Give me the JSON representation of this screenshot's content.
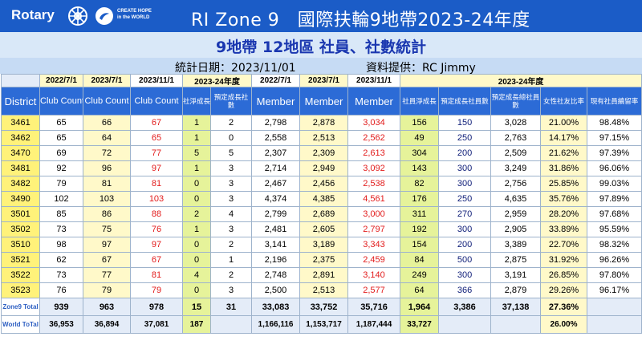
{
  "header": {
    "logo_text": "Rotary",
    "hope_text": [
      "CREATE HOPE",
      "in the WORLD"
    ],
    "title": "RI Zone 9　國際扶輪9地帶2023-24年度",
    "colors": {
      "header_bg": "#1b5cc7",
      "header_row_bg": "#2c6bd6",
      "district_bg": "#fff27a",
      "accent_red": "#e21b1b"
    }
  },
  "subtitle": "9地帶 12地區 社員、社數統計",
  "info": {
    "stat_date": "統計日期：2023/11/01",
    "provider": "資料提供：RC Jimmy"
  },
  "table": {
    "header_row1": [
      "2022/7/1",
      "2023/7/1",
      "2023/11/1",
      "2023-24年度",
      "2022/7/1",
      "2023/7/1",
      "2023/11/1",
      "2023-24年度"
    ],
    "header_row2": [
      "District",
      "Club Count",
      "Club Count",
      "Club Count",
      "社淨成長",
      "預定成長社數",
      "Member",
      "Member",
      "Member",
      "社員淨成長",
      "預定成長社員數",
      "預定成長總社員數",
      "女性社友比率",
      "現有社員續留率"
    ],
    "rows": [
      [
        "3461",
        "65",
        "66",
        "67",
        "1",
        "2",
        "2,798",
        "2,878",
        "3,034",
        "156",
        "150",
        "3,028",
        "21.00%",
        "98.48%"
      ],
      [
        "3462",
        "65",
        "64",
        "65",
        "1",
        "0",
        "2,558",
        "2,513",
        "2,562",
        "49",
        "250",
        "2,763",
        "14.17%",
        "97.15%"
      ],
      [
        "3470",
        "69",
        "72",
        "77",
        "5",
        "5",
        "2,307",
        "2,309",
        "2,613",
        "304",
        "200",
        "2,509",
        "21.62%",
        "97.39%"
      ],
      [
        "3481",
        "92",
        "96",
        "97",
        "1",
        "3",
        "2,714",
        "2,949",
        "3,092",
        "143",
        "300",
        "3,249",
        "31.86%",
        "96.06%"
      ],
      [
        "3482",
        "79",
        "81",
        "81",
        "0",
        "3",
        "2,467",
        "2,456",
        "2,538",
        "82",
        "300",
        "2,756",
        "25.85%",
        "99.03%"
      ],
      [
        "3490",
        "102",
        "103",
        "103",
        "0",
        "3",
        "4,374",
        "4,385",
        "4,561",
        "176",
        "250",
        "4,635",
        "35.76%",
        "97.89%"
      ],
      [
        "3501",
        "85",
        "86",
        "88",
        "2",
        "4",
        "2,799",
        "2,689",
        "3,000",
        "311",
        "270",
        "2,959",
        "28.20%",
        "97.68%"
      ],
      [
        "3502",
        "73",
        "75",
        "76",
        "1",
        "3",
        "2,481",
        "2,605",
        "2,797",
        "192",
        "300",
        "2,905",
        "33.89%",
        "95.59%"
      ],
      [
        "3510",
        "98",
        "97",
        "97",
        "0",
        "2",
        "3,141",
        "3,189",
        "3,343",
        "154",
        "200",
        "3,389",
        "22.70%",
        "98.32%"
      ],
      [
        "3521",
        "62",
        "67",
        "67",
        "0",
        "1",
        "2,196",
        "2,375",
        "2,459",
        "84",
        "500",
        "2,875",
        "31.92%",
        "96.26%"
      ],
      [
        "3522",
        "73",
        "77",
        "81",
        "4",
        "2",
        "2,748",
        "2,891",
        "3,140",
        "249",
        "300",
        "3,191",
        "26.85%",
        "97.80%"
      ],
      [
        "3523",
        "76",
        "79",
        "79",
        "0",
        "3",
        "2,500",
        "2,513",
        "2,577",
        "64",
        "366",
        "2,879",
        "29.26%",
        "96.17%"
      ]
    ],
    "zone_total": [
      "Zone9 Total",
      "939",
      "963",
      "978",
      "15",
      "31",
      "33,083",
      "33,752",
      "35,716",
      "1,964",
      "3,386",
      "37,138",
      "27.36%",
      ""
    ],
    "world_total": [
      "World ToTal",
      "36,953",
      "36,894",
      "37,081",
      "187",
      "",
      "1,166,116",
      "1,153,717",
      "1,187,444",
      "33,727",
      "",
      "",
      "26.00%",
      ""
    ]
  }
}
